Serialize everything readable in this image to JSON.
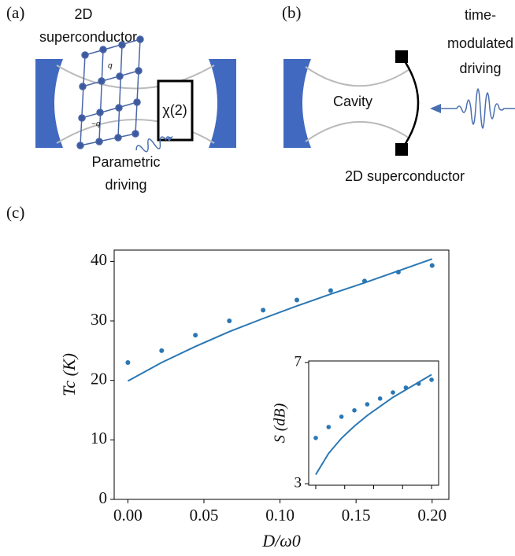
{
  "figure": {
    "panel_a": {
      "label": "(a)",
      "material_lines": [
        "2D",
        "superconductor"
      ],
      "drive_lines": [
        "Parametric",
        "driving"
      ],
      "element": "χ(2)",
      "q_plus": "q",
      "q_minus": "−q"
    },
    "panel_b": {
      "label": "(b)",
      "drive_lines": [
        "time-",
        "modulated",
        "driving"
      ],
      "cavity": "Cavity",
      "material": "2D superconductor"
    },
    "panel_c": {
      "label": "(c)"
    }
  },
  "chart_data": [
    {
      "type": "line",
      "xlabel": "D/ω0",
      "ylabel": "Tc (K)",
      "x": [
        0,
        0.0222,
        0.0444,
        0.0667,
        0.0889,
        0.1111,
        0.1333,
        0.1556,
        0.1778,
        0.2
      ],
      "series": [
        {
          "kind": "scatter",
          "color": "#2a77b4",
          "values": [
            23,
            25.0,
            27.6,
            30.0,
            31.8,
            33.5,
            35.1,
            36.7,
            38.2,
            39.3
          ]
        },
        {
          "kind": "line",
          "color": "#2a77b4",
          "values": [
            19.9,
            23.0,
            25.7,
            28.2,
            30.4,
            32.5,
            34.5,
            36.4,
            38.4,
            40.4
          ]
        }
      ],
      "xlim": [
        -0.009,
        0.211
      ],
      "ylim": [
        0,
        41.9
      ],
      "xticks": [
        {
          "value": 0,
          "label": "0.00"
        },
        0.05,
        {
          "value": 0.1,
          "label": "0.10"
        },
        0.15,
        {
          "value": 0.2,
          "label": "0.20"
        }
      ],
      "yticks": [
        0,
        10,
        20,
        30,
        40
      ]
    },
    {
      "type": "line",
      "ylabel": "S (dB)",
      "x": [
        0,
        0.0222,
        0.0444,
        0.0667,
        0.0889,
        0.1111,
        0.1333,
        0.1556,
        0.1778,
        0.2
      ],
      "series": [
        {
          "kind": "scatter",
          "color": "#2a77b4",
          "values": [
            4.51,
            4.87,
            5.21,
            5.42,
            5.62,
            5.81,
            6.01,
            6.17,
            6.3,
            6.43
          ]
        },
        {
          "kind": "line",
          "color": "#2a77b4",
          "values": [
            3.3,
            4.0,
            4.5,
            4.9,
            5.25,
            5.55,
            5.85,
            6.1,
            6.35,
            6.6
          ]
        }
      ],
      "xlim": [
        -0.0122,
        0.2122
      ],
      "ylim": [
        2.95,
        7.05
      ],
      "xticks": [
        0,
        0.05,
        0.1,
        0.15,
        0.2
      ],
      "xticks_labeled": false,
      "yticks": [
        3,
        7
      ]
    }
  ]
}
